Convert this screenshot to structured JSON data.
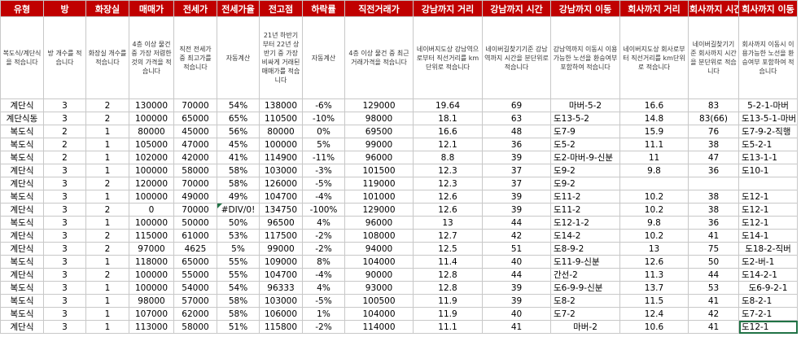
{
  "headers": [
    "유형",
    "방",
    "화장실",
    "매매가",
    "전세가",
    "전세가율",
    "전고점",
    "하락률",
    "직전거래가",
    "강남까지 거리",
    "강남까지 시간",
    "강남까지 이동",
    "회사까지 거리",
    "회사까지 시간",
    "회사까지 이동"
  ],
  "descriptions": [
    "복도식/계단식을 적습니다",
    "방 개수를 적습니다",
    "화장실 개수를 적습니다",
    "4층 이상 물건 중 가장 저렴한 것의 가격을 적습니다",
    "직전 전세가 중 최고가를 적습니다",
    "자동계산",
    "21년 하반기부터 22년 상반기 중 가장 비싸게 거래된 매매가를 적습니다",
    "자동계산",
    "4층 이상 물건 중 최근 거래가격을 적습니다",
    "네이버지도상 강남역으로부터 직선거리를 km단위로 적습니다",
    "네이버길찾기기준 강남역까지 시간을 분단위로 적습니다",
    "강남역까지 이동시 이용가능한 노선을 환승여부 포함하여 적습니다",
    "네이버지도상 회사로부터 직선거리를 km단위로 적습니다",
    "네이버길찾기기준 회사까지 시간을 분단위로 적습니다",
    "회사까지 이동시 이용가능한 노선을 환승여부 포함하여 적습니다"
  ],
  "rows": [
    [
      "계단식",
      "3",
      "2",
      "130000",
      "70000",
      "54%",
      "138000",
      "-6%",
      "129000",
      "19.64",
      "69",
      "마버-5-2",
      "16.6",
      "83",
      "5-2-1-마버"
    ],
    [
      "계단식동",
      "3",
      "2",
      "100000",
      "65000",
      "65%",
      "110500",
      "-10%",
      "98000",
      "18.1",
      "63",
      "도13-5-2",
      "14.8",
      "83(66)",
      "도13-5-1-마버"
    ],
    [
      "복도식",
      "2",
      "1",
      "80000",
      "45000",
      "56%",
      "80000",
      "0%",
      "69500",
      "16.6",
      "48",
      "도7-9",
      "15.9",
      "76",
      "도7-9-2-직행"
    ],
    [
      "복도식",
      "2",
      "1",
      "105000",
      "47000",
      "45%",
      "100000",
      "5%",
      "99000",
      "12.1",
      "36",
      "도5-2",
      "11.1",
      "38",
      "도5-2-1"
    ],
    [
      "복도식",
      "2",
      "1",
      "102000",
      "42000",
      "41%",
      "114900",
      "-11%",
      "96000",
      "8.8",
      "39",
      "도2-마버-9-신분",
      "11",
      "47",
      "도13-1-1"
    ],
    [
      "계단식",
      "3",
      "1",
      "100000",
      "58000",
      "58%",
      "103000",
      "-3%",
      "101500",
      "12.3",
      "37",
      "도9-2",
      "9.8",
      "36",
      "도10-1"
    ],
    [
      "계단식",
      "3",
      "2",
      "120000",
      "70000",
      "58%",
      "126000",
      "-5%",
      "119000",
      "12.3",
      "37",
      "도9-2",
      "",
      "",
      ""
    ],
    [
      "복도식",
      "3",
      "1",
      "100000",
      "49000",
      "49%",
      "104700",
      "-4%",
      "101000",
      "12.6",
      "39",
      "도11-2",
      "10.2",
      "38",
      "도12-1"
    ],
    [
      "계단식",
      "3",
      "2",
      "0",
      "70000",
      "#DIV/0!",
      "134750",
      "-100%",
      "129000",
      "12.6",
      "39",
      "도11-2",
      "10.2",
      "38",
      "도12-1"
    ],
    [
      "복도식",
      "3",
      "1",
      "100000",
      "50000",
      "50%",
      "96500",
      "4%",
      "96000",
      "13",
      "44",
      "도12-1-2",
      "9.8",
      "36",
      "도12-1"
    ],
    [
      "계단식",
      "3",
      "2",
      "115000",
      "61000",
      "53%",
      "117500",
      "-2%",
      "108000",
      "12.7",
      "42",
      "도14-2",
      "10.2",
      "41",
      "도14-1"
    ],
    [
      "계단식",
      "3",
      "2",
      "97000",
      "4625",
      "5%",
      "99000",
      "-2%",
      "94000",
      "12.5",
      "51",
      "도8-9-2",
      "13",
      "75",
      "도18-2-직버"
    ],
    [
      "복도식",
      "3",
      "1",
      "118000",
      "65000",
      "55%",
      "109000",
      "8%",
      "104000",
      "11.4",
      "40",
      "도11-9-신분",
      "12.6",
      "50",
      "도2-버-1"
    ],
    [
      "계단식",
      "3",
      "2",
      "100000",
      "55000",
      "55%",
      "104700",
      "-4%",
      "90000",
      "12.8",
      "44",
      "간선-2",
      "11.3",
      "44",
      "도14-2-1"
    ],
    [
      "복도식",
      "3",
      "1",
      "100000",
      "54000",
      "54%",
      "96333",
      "4%",
      "93000",
      "12.8",
      "39",
      "도6-9-9-신분",
      "13.7",
      "53",
      "도6-9-2-1"
    ],
    [
      "복도식",
      "3",
      "1",
      "98000",
      "57000",
      "58%",
      "103000",
      "-5%",
      "100500",
      "11.9",
      "39",
      "도8-2",
      "11.5",
      "41",
      "도8-2-1"
    ],
    [
      "복도식",
      "3",
      "1",
      "107000",
      "62000",
      "58%",
      "106000",
      "1%",
      "104000",
      "11.9",
      "40",
      "도7-2",
      "12.4",
      "42",
      "도7-2-1"
    ],
    [
      "계단식",
      "3",
      "1",
      "113000",
      "58000",
      "51%",
      "115800",
      "-2%",
      "114000",
      "11.1",
      "41",
      "마버-2",
      "10.6",
      "41",
      "도12-1"
    ]
  ],
  "colors": {
    "header_bg": "#c00000",
    "header_text": "#ffffff",
    "grid": "#c8c8c8",
    "selection": "#217346"
  }
}
